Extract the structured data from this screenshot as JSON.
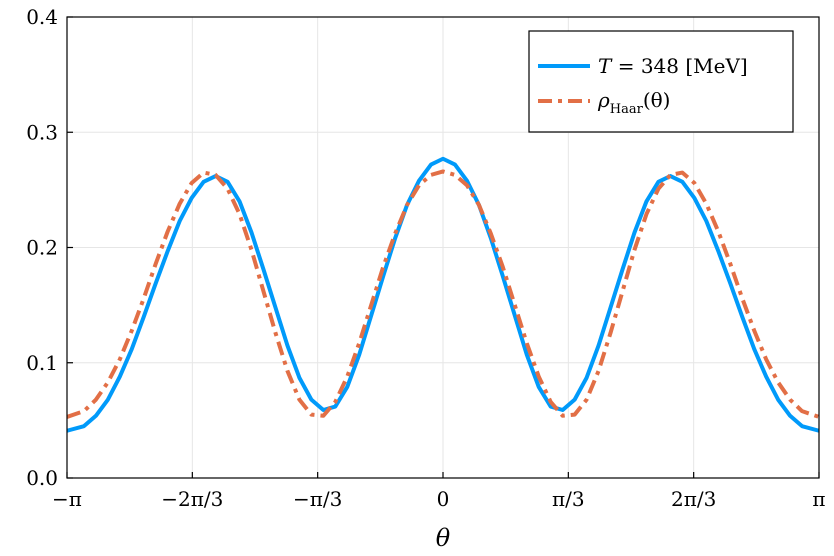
{
  "chart_data": {
    "type": "line",
    "title": "",
    "xlabel": "θ",
    "ylabel": "",
    "xlim": [
      -3.14159,
      3.14159
    ],
    "ylim": [
      0.0,
      0.4
    ],
    "grid": true,
    "legend_position": "top-right",
    "x_ticks": [
      {
        "value": -3.14159,
        "label": "−π"
      },
      {
        "value": -2.0944,
        "label": "−2π/3"
      },
      {
        "value": -1.0472,
        "label": "−π/3"
      },
      {
        "value": 0,
        "label": "0"
      },
      {
        "value": 1.0472,
        "label": "π/3"
      },
      {
        "value": 2.0944,
        "label": "2π/3"
      },
      {
        "value": 3.14159,
        "label": "π"
      }
    ],
    "y_ticks": [
      {
        "value": 0.0,
        "label": "0.0"
      },
      {
        "value": 0.1,
        "label": "0.1"
      },
      {
        "value": 0.2,
        "label": "0.2"
      },
      {
        "value": 0.3,
        "label": "0.3"
      },
      {
        "value": 0.4,
        "label": "0.4"
      }
    ],
    "series": [
      {
        "name": "T = 348 [MeV]",
        "color": "#009AFA",
        "style": "solid",
        "x": [
          -3.1416,
          -3.0,
          -2.9,
          -2.8,
          -2.7,
          -2.6,
          -2.5,
          -2.4,
          -2.3,
          -2.2,
          -2.1,
          -2.0,
          -1.9,
          -1.8,
          -1.7,
          -1.6,
          -1.5,
          -1.4,
          -1.3,
          -1.2,
          -1.1,
          -1.0,
          -0.9,
          -0.8,
          -0.7,
          -0.6,
          -0.5,
          -0.4,
          -0.3,
          -0.2,
          -0.1,
          0.0,
          0.1,
          0.2,
          0.3,
          0.4,
          0.5,
          0.6,
          0.7,
          0.8,
          0.9,
          1.0,
          1.1,
          1.2,
          1.3,
          1.4,
          1.5,
          1.6,
          1.7,
          1.8,
          1.9,
          2.0,
          2.1,
          2.2,
          2.3,
          2.4,
          2.5,
          2.6,
          2.7,
          2.8,
          2.9,
          3.0,
          3.1416
        ],
        "y": [
          0.041,
          0.045,
          0.054,
          0.068,
          0.088,
          0.112,
          0.14,
          0.169,
          0.197,
          0.223,
          0.243,
          0.257,
          0.262,
          0.257,
          0.24,
          0.213,
          0.181,
          0.148,
          0.115,
          0.087,
          0.068,
          0.059,
          0.062,
          0.079,
          0.107,
          0.141,
          0.175,
          0.208,
          0.237,
          0.258,
          0.272,
          0.277,
          0.272,
          0.258,
          0.237,
          0.208,
          0.175,
          0.141,
          0.107,
          0.079,
          0.062,
          0.059,
          0.068,
          0.087,
          0.115,
          0.148,
          0.181,
          0.213,
          0.24,
          0.257,
          0.262,
          0.257,
          0.243,
          0.223,
          0.197,
          0.169,
          0.14,
          0.112,
          0.088,
          0.068,
          0.054,
          0.045,
          0.041
        ]
      },
      {
        "name": "ρ_Haar(θ)",
        "color": "#E26F46",
        "style": "dashdot",
        "x": [
          -3.1416,
          -3.0,
          -2.9,
          -2.8,
          -2.7,
          -2.6,
          -2.5,
          -2.4,
          -2.3,
          -2.2,
          -2.1,
          -2.0,
          -1.9,
          -1.8,
          -1.7,
          -1.6,
          -1.5,
          -1.4,
          -1.3,
          -1.2,
          -1.1,
          -1.0,
          -0.9,
          -0.8,
          -0.7,
          -0.6,
          -0.5,
          -0.4,
          -0.3,
          -0.2,
          -0.1,
          0.0,
          0.1,
          0.2,
          0.3,
          0.4,
          0.5,
          0.6,
          0.7,
          0.8,
          0.9,
          1.0,
          1.1,
          1.2,
          1.3,
          1.4,
          1.5,
          1.6,
          1.7,
          1.8,
          1.9,
          2.0,
          2.1,
          2.2,
          2.3,
          2.4,
          2.5,
          2.6,
          2.7,
          2.8,
          2.9,
          3.0,
          3.1416
        ],
        "y": [
          0.053,
          0.058,
          0.068,
          0.083,
          0.103,
          0.128,
          0.156,
          0.186,
          0.214,
          0.238,
          0.256,
          0.265,
          0.263,
          0.251,
          0.229,
          0.198,
          0.162,
          0.126,
          0.093,
          0.068,
          0.055,
          0.054,
          0.066,
          0.088,
          0.117,
          0.15,
          0.183,
          0.212,
          0.237,
          0.254,
          0.263,
          0.266,
          0.263,
          0.254,
          0.237,
          0.212,
          0.183,
          0.15,
          0.117,
          0.088,
          0.066,
          0.054,
          0.055,
          0.068,
          0.093,
          0.126,
          0.162,
          0.198,
          0.229,
          0.251,
          0.263,
          0.265,
          0.256,
          0.238,
          0.214,
          0.186,
          0.156,
          0.128,
          0.103,
          0.083,
          0.068,
          0.058,
          0.053
        ]
      }
    ],
    "legend": {
      "entry1": {
        "italic": "T",
        "rest": " = 348 [MeV]"
      },
      "entry2": {
        "rho": "ρ",
        "sub": "Haar",
        "tail": "(θ)"
      }
    }
  }
}
